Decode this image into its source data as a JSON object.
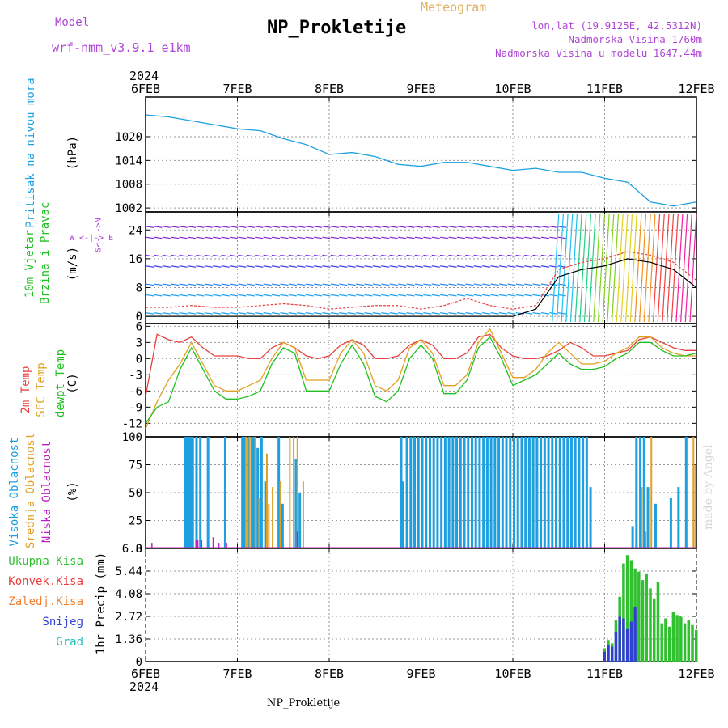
{
  "header": {
    "model_label": "Model",
    "model_name": "wrf-nmm_v3.9.1 e1km",
    "title": "NP_Prokletije",
    "meteogram": "Meteogram",
    "lonlat": "lon,lat (19.9125E, 42.5312N)",
    "altitude": "Nadmorska Visina 1760m",
    "model_altitude": "Nadmorska Visina u modelu 1647.44m"
  },
  "footer": {
    "station": "NP_Prokletije"
  },
  "watermark": "made by Angel",
  "time_axis": {
    "year": "2024",
    "ticks": [
      "6FEB",
      "7FEB",
      "8FEB",
      "9FEB",
      "10FEB",
      "11FEB",
      "12FEB"
    ]
  },
  "colors": {
    "pressure": "#1ea0e0",
    "temp2m": "#e84040",
    "sfc": "#e0a020",
    "dewpt": "#20c020",
    "high_cloud": "#1e9fe0",
    "mid_cloud": "#e0a020",
    "low_cloud": "#c020c0",
    "total_precip": "#30c030",
    "snow": "#3040d0",
    "label_purple": "#b046d6"
  },
  "panels": {
    "pressure": {
      "title": "Pritisak na nivou mora",
      "unit": "(hPa)"
    },
    "wind": {
      "title1": "10m Vjetar",
      "title2": "Brzina i Pravac",
      "unit": "(m/s)",
      "compass_ns": "S<-|->N",
      "compass_we": "W <-|-> E"
    },
    "temp": {
      "l1": "2m Temp",
      "l2": "SFC Temp",
      "l3": "dewpt Temp",
      "unit": "(C)"
    },
    "cloud": {
      "l1": "Visoka Oblacnost",
      "l2": "Srednja Oblacnost",
      "l3": "Niska Oblacnost",
      "unit": "(%)"
    },
    "precip": {
      "legend": [
        "Ukupna Kisa",
        "Konvek.Kisa",
        "Zaledj.Kisa",
        "Snijeg",
        "Grad"
      ],
      "unit": "1hr Precip (mm)"
    }
  },
  "chart_data": [
    {
      "type": "line",
      "name": "pressure",
      "ylabel": "Pritisak na nivou mora (hPa)",
      "ylim": [
        1001,
        1030
      ],
      "yticks": [
        "1002",
        "1008",
        "1014",
        "1020"
      ],
      "ytick_values": [
        1002,
        1008,
        1014,
        1020
      ],
      "x_hours": [
        0,
        6,
        12,
        18,
        24,
        30,
        36,
        42,
        48,
        54,
        60,
        66,
        72,
        78,
        84,
        90,
        96,
        102,
        108,
        114,
        120,
        126,
        132,
        138,
        144
      ],
      "series": [
        {
          "values": [
            1025.5,
            1025,
            1024,
            1023,
            1022,
            1021.5,
            1019.5,
            1018,
            1015.5,
            1016,
            1015,
            1013,
            1012.5,
            1013.5,
            1013.5,
            1012.5,
            1011.5,
            1012,
            1011,
            1011,
            1009.5,
            1008.5,
            1003.5,
            1002.5,
            1003.5
          ]
        }
      ]
    },
    {
      "type": "line",
      "name": "wind",
      "ylabel": "10m Vjetar Brzina i Pravac (m/s)",
      "ylim": [
        -2,
        29
      ],
      "yticks": [
        "0",
        "8",
        "16",
        "24"
      ],
      "ytick_values": [
        0,
        8,
        16,
        24
      ],
      "x_hours": [
        0,
        6,
        12,
        18,
        24,
        30,
        36,
        42,
        48,
        54,
        60,
        66,
        72,
        78,
        84,
        90,
        96,
        102,
        108,
        114,
        120,
        126,
        132,
        138,
        144
      ],
      "series": [
        {
          "values": [
            2.5,
            2.5,
            3,
            2.5,
            2.5,
            3,
            3.5,
            3,
            2,
            2.5,
            3,
            3,
            2,
            3,
            5,
            3,
            2,
            3,
            13,
            15,
            16,
            18,
            17,
            15,
            10
          ]
        },
        {
          "values": [
            0,
            0,
            0,
            0,
            0,
            0,
            0,
            0,
            0,
            0,
            0,
            0,
            0,
            0,
            0,
            0,
            0,
            2,
            11,
            13,
            14,
            16,
            15,
            13,
            8
          ]
        }
      ]
    },
    {
      "type": "line",
      "name": "temperature",
      "ylabel": "Temp (C)",
      "ylim": [
        -14.5,
        6.5
      ],
      "yticks": [
        "-12",
        "-9",
        "-6",
        "-3",
        "0",
        "3",
        "6"
      ],
      "ytick_values": [
        -12,
        -9,
        -6,
        -3,
        0,
        3,
        6
      ],
      "x_hours": [
        0,
        3,
        6,
        9,
        12,
        15,
        18,
        21,
        24,
        27,
        30,
        33,
        36,
        39,
        42,
        45,
        48,
        51,
        54,
        57,
        60,
        63,
        66,
        69,
        72,
        75,
        78,
        81,
        84,
        87,
        90,
        93,
        96,
        99,
        102,
        105,
        108,
        111,
        114,
        117,
        120,
        123,
        126,
        129,
        132,
        135,
        138,
        141,
        144
      ],
      "series": [
        {
          "name": "2m Temp",
          "values": [
            -7,
            4.5,
            3.5,
            3,
            4,
            2,
            0.5,
            0.5,
            0.5,
            0,
            0,
            2,
            3,
            2,
            0.5,
            0,
            0.5,
            2.5,
            3.5,
            2.5,
            0,
            0,
            0.5,
            2.5,
            3.5,
            2.5,
            0,
            0,
            1,
            4,
            4.5,
            2,
            0.5,
            0,
            0,
            0.5,
            1.5,
            3,
            2,
            0.5,
            0.5,
            1,
            1.5,
            3.5,
            4,
            3,
            2,
            1.5,
            1.5
          ]
        },
        {
          "name": "SFC Temp",
          "values": [
            -13,
            -8,
            -4,
            -1,
            3,
            -1,
            -5,
            -6,
            -6,
            -5,
            -4,
            0,
            3,
            2,
            -4,
            -4,
            -4,
            1,
            3.5,
            1,
            -5,
            -6,
            -4,
            2,
            3.5,
            1,
            -5,
            -5,
            -3,
            3,
            5.5,
            1,
            -3.5,
            -3.5,
            -2,
            1,
            3,
            1,
            -1,
            -1,
            -0.5,
            1,
            2,
            4,
            4,
            2,
            1,
            0.5,
            0.5
          ]
        },
        {
          "name": "dewpt Temp",
          "values": [
            -12,
            -9,
            -8,
            -2,
            2,
            -2,
            -6,
            -7.5,
            -7.5,
            -7,
            -6,
            -1,
            2,
            1,
            -6,
            -6,
            -6,
            -1,
            2.5,
            -1,
            -7,
            -8,
            -6,
            0,
            2.5,
            0,
            -6.5,
            -6.5,
            -4,
            2,
            4,
            0,
            -5,
            -4,
            -3,
            -1,
            1,
            -1,
            -2,
            -2,
            -1.5,
            0,
            1,
            3,
            3,
            1.5,
            0.5,
            0.5,
            1
          ]
        }
      ]
    },
    {
      "type": "bar",
      "name": "cloud",
      "ylabel": "Oblacnost (%)",
      "ylim": [
        0,
        100
      ],
      "yticks": [
        "0",
        "25",
        "50",
        "75",
        "100"
      ],
      "ytick_values": [
        0,
        25,
        50,
        75,
        100
      ],
      "series": [
        {
          "name": "Visoka Oblacnost",
          "bars": [
            [
              10,
              100
            ],
            [
              10.5,
              100
            ],
            [
              11,
              100
            ],
            [
              11.5,
              100
            ],
            [
              12,
              100
            ],
            [
              13,
              100
            ],
            [
              14,
              100
            ],
            [
              16,
              100
            ],
            [
              20.5,
              100
            ],
            [
              25,
              100
            ],
            [
              25.5,
              100
            ],
            [
              26.5,
              100
            ],
            [
              27.5,
              100
            ],
            [
              28,
              100
            ],
            [
              29,
              90
            ],
            [
              30,
              100
            ],
            [
              31,
              60
            ],
            [
              34.5,
              100
            ],
            [
              35.5,
              40
            ],
            [
              39,
              80
            ],
            [
              40,
              50
            ],
            [
              66.5,
              100
            ],
            [
              67,
              60
            ],
            [
              68,
              100
            ],
            [
              69,
              100
            ],
            [
              70,
              100
            ],
            [
              71,
              100
            ],
            [
              72,
              100
            ],
            [
              73,
              100
            ],
            [
              74,
              100
            ],
            [
              75,
              100
            ],
            [
              76,
              100
            ],
            [
              77,
              100
            ],
            [
              78,
              100
            ],
            [
              79,
              100
            ],
            [
              80,
              100
            ],
            [
              81,
              100
            ],
            [
              82,
              100
            ],
            [
              83,
              100
            ],
            [
              84,
              100
            ],
            [
              85,
              100
            ],
            [
              86,
              100
            ],
            [
              87,
              100
            ],
            [
              88,
              100
            ],
            [
              89,
              100
            ],
            [
              90,
              100
            ],
            [
              91,
              100
            ],
            [
              92,
              100
            ],
            [
              93,
              100
            ],
            [
              94,
              100
            ],
            [
              95,
              100
            ],
            [
              96,
              100
            ],
            [
              97,
              100
            ],
            [
              98,
              100
            ],
            [
              99,
              100
            ],
            [
              100,
              100
            ],
            [
              101,
              100
            ],
            [
              102,
              100
            ],
            [
              103,
              100
            ],
            [
              104,
              100
            ],
            [
              105,
              100
            ],
            [
              106,
              100
            ],
            [
              107,
              100
            ],
            [
              108,
              100
            ],
            [
              109,
              100
            ],
            [
              110,
              100
            ],
            [
              111,
              100
            ],
            [
              112,
              100
            ],
            [
              113,
              100
            ],
            [
              114,
              100
            ],
            [
              115,
              100
            ],
            [
              116,
              55
            ],
            [
              127,
              20
            ],
            [
              128,
              100
            ],
            [
              129,
              100
            ],
            [
              130,
              100
            ],
            [
              131,
              55
            ],
            [
              133,
              40
            ],
            [
              137,
              45
            ],
            [
              139,
              55
            ],
            [
              141,
              100
            ]
          ]
        },
        {
          "name": "Srednja Oblacnost",
          "bars": [
            [
              26,
              100
            ],
            [
              27,
              100
            ],
            [
              28.5,
              100
            ],
            [
              29.5,
              45
            ],
            [
              31.5,
              85
            ],
            [
              32,
              40
            ],
            [
              33,
              55
            ],
            [
              35,
              60
            ],
            [
              37.5,
              100
            ],
            [
              38.5,
              100
            ],
            [
              39.5,
              100
            ],
            [
              41,
              60
            ],
            [
              129.5,
              55
            ],
            [
              132,
              100
            ],
            [
              143,
              100
            ],
            [
              143.5,
              75
            ]
          ]
        },
        {
          "name": "Niska Oblacnost",
          "bars": [
            [
              1.5,
              5
            ],
            [
              13,
              8
            ],
            [
              13.5,
              8
            ],
            [
              14.5,
              8
            ],
            [
              17.5,
              10
            ],
            [
              19,
              5
            ],
            [
              21,
              5
            ],
            [
              39.5,
              15
            ],
            [
              130.5,
              15
            ]
          ]
        }
      ]
    },
    {
      "type": "bar",
      "name": "precipitation",
      "ylabel": "1hr Precip (mm)",
      "ylim": [
        0,
        6.8
      ],
      "yticks": [
        "0",
        "1.36",
        "2.72",
        "4.08",
        "5.44",
        "6.8"
      ],
      "ytick_values": [
        0,
        1.36,
        2.72,
        4.08,
        5.44,
        6.8
      ],
      "series": [
        {
          "name": "Ukupna Kisa",
          "bars": [
            [
              120,
              0.8
            ],
            [
              121,
              1.3
            ],
            [
              122,
              1.1
            ],
            [
              123,
              2.5
            ],
            [
              124,
              3.9
            ],
            [
              125,
              5.9
            ],
            [
              126,
              6.4
            ],
            [
              127,
              6.1
            ],
            [
              128,
              5.6
            ],
            [
              129,
              5.4
            ],
            [
              130,
              4.9
            ],
            [
              131,
              5.3
            ],
            [
              132,
              4.4
            ],
            [
              133,
              3.8
            ],
            [
              134,
              4.8
            ],
            [
              135,
              2.3
            ],
            [
              136,
              2.6
            ],
            [
              137,
              2.1
            ],
            [
              138,
              3.0
            ],
            [
              139,
              2.8
            ],
            [
              140,
              2.7
            ],
            [
              141,
              2.3
            ],
            [
              142,
              2.5
            ],
            [
              143,
              2.2
            ],
            [
              144,
              1.9
            ]
          ]
        },
        {
          "name": "Snijeg",
          "bars": [
            [
              120,
              0.6
            ],
            [
              121,
              1.0
            ],
            [
              122,
              0.9
            ],
            [
              123,
              1.8
            ],
            [
              124,
              2.7
            ],
            [
              125,
              2.6
            ],
            [
              126,
              2.0
            ],
            [
              127,
              2.4
            ],
            [
              128,
              3.3
            ]
          ]
        }
      ]
    }
  ]
}
